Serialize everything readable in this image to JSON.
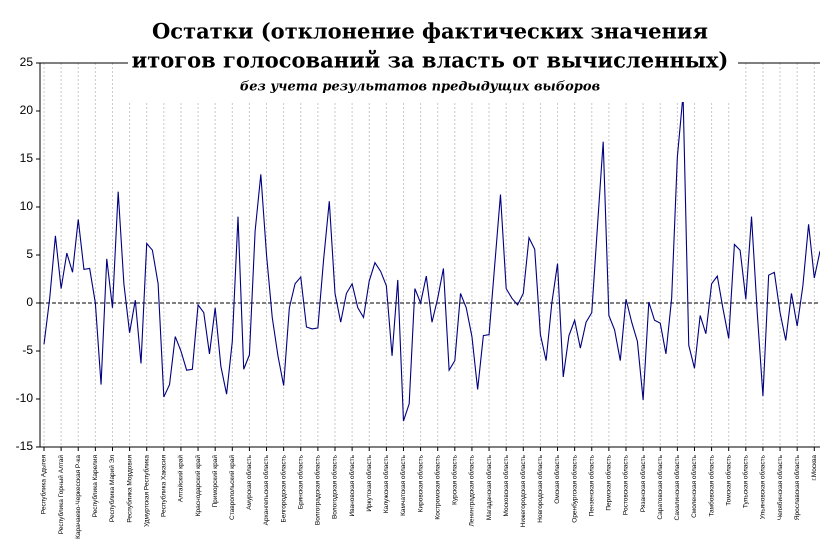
{
  "chart_data": {
    "type": "line",
    "title": "Остатки (отклонение фактических значения",
    "title_line2": "итогов голосований за власть от вычисленных)",
    "subtitle": "без учета результатов предыдущих выборов",
    "categories": [
      "Республика Адыгея",
      null,
      null,
      "Республика Горный Алтай",
      null,
      null,
      "Карачаево-Черкесская Р-ка",
      null,
      null,
      "Республика Карелия",
      null,
      null,
      "Республика Марий Эл",
      null,
      null,
      "Республика Мордовия",
      null,
      null,
      "Удмуртская Республика",
      null,
      null,
      "Республика Хакасия",
      null,
      null,
      "Алтайский край",
      null,
      null,
      "Краснодарский край",
      null,
      null,
      "Приморский край",
      null,
      null,
      "Ставропольский край",
      null,
      null,
      "Амурская область",
      null,
      null,
      "Архангельская область",
      null,
      null,
      "Белгородская область",
      null,
      null,
      "Брянская область",
      null,
      null,
      "Волгоградская область",
      null,
      null,
      "Вологодская область",
      null,
      null,
      "Ивановская область",
      null,
      null,
      "Иркутская область",
      null,
      null,
      "Калужская область",
      null,
      null,
      "Камчатская область",
      null,
      null,
      "Кировская область",
      null,
      null,
      "Костромская область",
      null,
      null,
      "Курская область",
      null,
      null,
      "Ленинградская область",
      null,
      null,
      "Магаданская область",
      null,
      null,
      "Московская область",
      null,
      null,
      "Нижегородская область",
      null,
      null,
      "Новгородская область",
      null,
      null,
      "Омская область",
      null,
      null,
      "Оренбургская область",
      null,
      null,
      "Пензенская область",
      null,
      null,
      "Пермская область",
      null,
      null,
      "Ростовская область",
      null,
      null,
      "Рязанская область",
      null,
      null,
      "Саратовская область",
      null,
      null,
      "Сахалинская область",
      null,
      null,
      "Смоленская область",
      null,
      null,
      "Тамбовская область",
      null,
      null,
      "Томская область",
      null,
      null,
      "Тульская область",
      null,
      null,
      "Ульяновская область",
      null,
      null,
      "Челябинская область",
      null,
      null,
      "Ярославская область",
      null,
      null,
      "г.Москва",
      null
    ],
    "series": [
      {
        "name": "Остатки",
        "color": "#000080",
        "values": [
          -4.3,
          0.5,
          7,
          1.5,
          5.2,
          3.2,
          8.7,
          3.5,
          3.6,
          0,
          -8.5,
          4.6,
          -0.5,
          11.6,
          2,
          -3.1,
          0.3,
          -6.3,
          6.2,
          5.5,
          2,
          -9.8,
          -8.5,
          -3.5,
          -5,
          -7,
          -6.9,
          -0.2,
          -1,
          -5.3,
          -0.5,
          -6.6,
          -9.5,
          -4,
          9,
          -6.9,
          -5.4,
          7.5,
          13.4,
          5,
          -1.5,
          -5.5,
          -8.6,
          -0.5,
          2,
          2.7,
          -2.5,
          -2.7,
          -2.6,
          4.5,
          10.6,
          1,
          -2,
          1,
          2,
          -0.5,
          -1.5,
          2.3,
          4.2,
          3.3,
          1.8,
          -5.5,
          2.4,
          -12.3,
          -10.5,
          1.5,
          0,
          2.8,
          -2,
          0.5,
          3.6,
          -7,
          -6,
          1,
          -0.5,
          -3.5,
          -9,
          -3.4,
          -3.3,
          4,
          11.3,
          1.5,
          0.5,
          -0.2,
          1,
          6.8,
          5.6,
          -3.3,
          -6,
          0,
          4.1,
          -7.7,
          -3.4,
          -1.8,
          -4.7,
          -2,
          -1,
          8,
          16.8,
          -1.3,
          -2.8,
          -6,
          0.4,
          -2,
          -4,
          -10.1,
          0.1,
          -1.8,
          -2.1,
          -5.3,
          0.5,
          15.2,
          21.7,
          -4.4,
          -6.8,
          -1.3,
          -3.2,
          2,
          2.8,
          -0.6,
          -3.7,
          6.1,
          5.5,
          0.4,
          9,
          -1,
          -9.7,
          2.9,
          3.2,
          -1,
          -3.9,
          1,
          -2.4,
          1.8,
          8.2,
          2.6,
          5.4
        ]
      }
    ],
    "ylim": [
      -15,
      25
    ],
    "yticks": [
      -15,
      -10,
      -5,
      0,
      5,
      10,
      15,
      20,
      25
    ],
    "grid": true
  }
}
